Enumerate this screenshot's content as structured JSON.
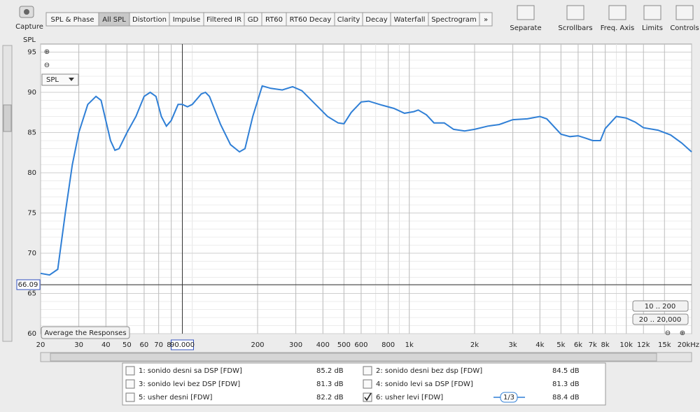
{
  "toolbar": {
    "capture": "Capture",
    "tabs": [
      "SPL & Phase",
      "All SPL",
      "Distortion",
      "Impulse",
      "Filtered IR",
      "GD",
      "RT60",
      "RT60 Decay",
      "Clarity",
      "Decay",
      "Waterfall",
      "Spectrogram",
      "»"
    ],
    "selected_tab": 1,
    "tools": [
      "Separate",
      "Scrollbars",
      "Freq. Axis",
      "Limits",
      "Controls"
    ]
  },
  "chart_data": {
    "type": "line",
    "ylabel": "SPL",
    "view_select": "SPL",
    "xlim": [
      20,
      20000
    ],
    "log_x": true,
    "ylim": [
      60,
      96
    ],
    "xticks": [
      20,
      30,
      40,
      50,
      60,
      70,
      80,
      200,
      300,
      400,
      500,
      600,
      800,
      {
        "value": 1000,
        "label": "1k"
      },
      {
        "value": 2000,
        "label": "2k"
      },
      {
        "value": 3000,
        "label": "3k"
      },
      {
        "value": 4000,
        "label": "4k"
      },
      {
        "value": 5000,
        "label": "5k"
      },
      {
        "value": 6000,
        "label": "6k"
      },
      {
        "value": 7000,
        "label": "7k"
      },
      {
        "value": 8000,
        "label": "8k"
      },
      {
        "value": 10000,
        "label": "10k"
      },
      {
        "value": 12000,
        "label": "12k",
        "color": "#9a9a9a"
      },
      {
        "value": 15000,
        "label": "15k",
        "color": "#9a9a9a"
      },
      {
        "value": 20000,
        "label": "20kHz"
      }
    ],
    "yticks": [
      60,
      65,
      70,
      75,
      80,
      85,
      90,
      95
    ],
    "grid": true,
    "cursor": {
      "x": {
        "value": 90,
        "label": "90.000"
      },
      "y": 66.09
    },
    "buttons": {
      "average": "Average the Responses",
      "range1": "10 .. 200",
      "range2": "20 .. 20,000"
    },
    "series": [
      {
        "name": "6: usher levi [FDW]",
        "color": "#2f7fd6",
        "x": [
          20,
          22,
          24,
          26,
          28,
          30,
          33,
          36,
          38,
          42,
          44,
          46,
          50,
          55,
          60,
          64,
          68,
          72,
          76,
          80,
          86,
          90,
          95,
          100,
          110,
          115,
          120,
          135,
          150,
          165,
          175,
          190,
          210,
          230,
          260,
          290,
          320,
          370,
          420,
          470,
          500,
          540,
          600,
          650,
          750,
          850,
          950,
          1050,
          1100,
          1200,
          1300,
          1450,
          1600,
          1800,
          2000,
          2300,
          2600,
          3000,
          3500,
          4000,
          4300,
          5000,
          5500,
          6000,
          6500,
          7000,
          7600,
          8000,
          9000,
          10000,
          11000,
          12000,
          14000,
          16000,
          18000,
          20000
        ],
        "values": [
          67.5,
          67.3,
          68,
          75,
          81,
          85,
          88.5,
          89.5,
          89,
          84,
          82.8,
          83,
          85,
          87,
          89.5,
          90,
          89.5,
          87,
          85.8,
          86.5,
          88.5,
          88.5,
          88.2,
          88.5,
          89.8,
          90,
          89.5,
          86,
          83.5,
          82.6,
          83,
          87,
          90.8,
          90.5,
          90.3,
          90.7,
          90.2,
          88.5,
          87,
          86.2,
          86.1,
          87.5,
          88.8,
          88.9,
          88.4,
          88,
          87.4,
          87.6,
          87.8,
          87.2,
          86.2,
          86.2,
          85.4,
          85.2,
          85.4,
          85.8,
          86,
          86.6,
          86.7,
          87,
          86.7,
          84.8,
          84.5,
          84.6,
          84.3,
          84,
          84,
          85.5,
          87,
          86.8,
          86.3,
          85.6,
          85.3,
          84.7,
          83.7,
          82.6
        ]
      }
    ]
  },
  "legend": [
    {
      "name": "1: sonido desni sa DSP [FDW]",
      "value": "85.2 dB",
      "color": "#d02828",
      "checked": false
    },
    {
      "name": "2: sonido desni bez dsp [FDW]",
      "value": "84.5 dB",
      "color": "#2a9a2a",
      "checked": false
    },
    {
      "name": "3: sonido levi bez DSP [FDW]",
      "value": "81.3 dB",
      "color": "#5a5ad0",
      "checked": false
    },
    {
      "name": "4: sonido levi sa DSP [FDW]",
      "value": "81.3 dB",
      "color": "#e08a20",
      "checked": false
    },
    {
      "name": "5: usher desni [FDW]",
      "value": "82.2 dB",
      "color": "#25a025",
      "checked": false
    },
    {
      "name": "6: usher levi [FDW]",
      "value": "88.4 dB",
      "color": "#2f7fd6",
      "checked": true,
      "smoothing": "1/3"
    }
  ]
}
